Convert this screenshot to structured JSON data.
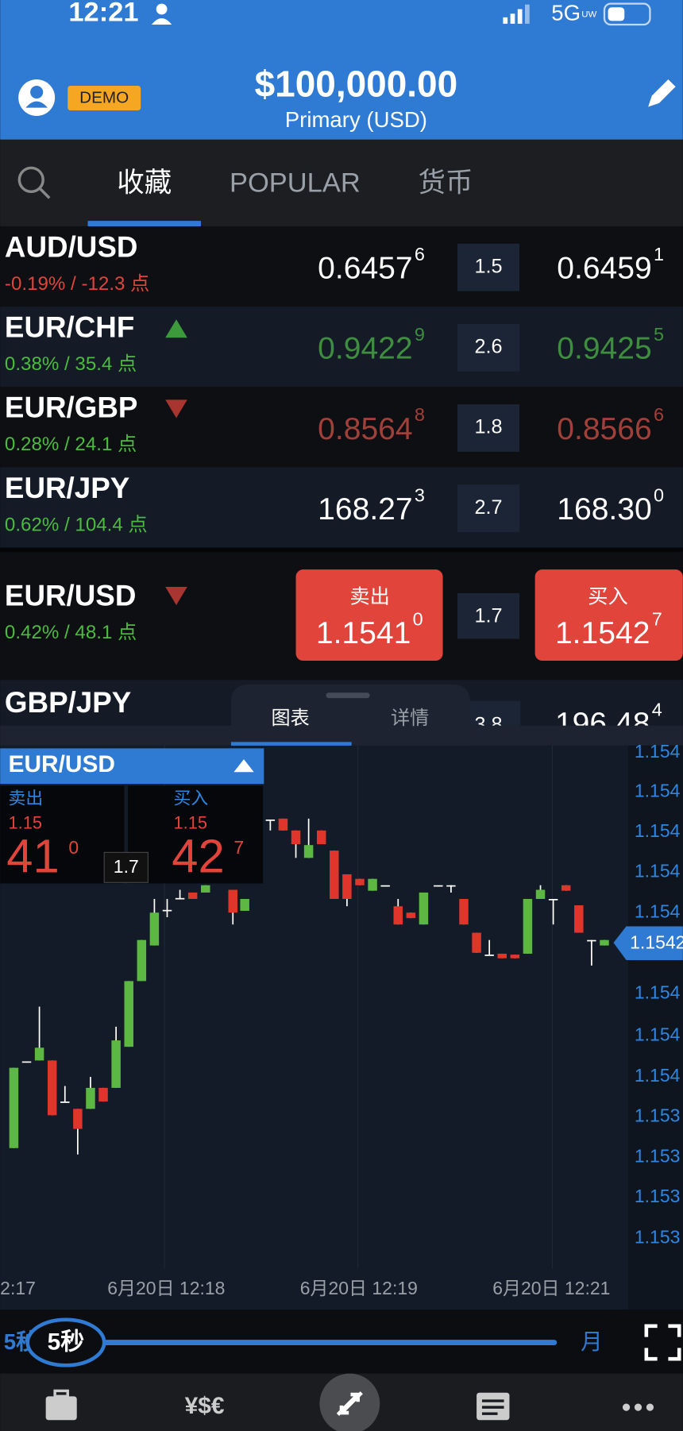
{
  "status_bar": {
    "time": "12:21",
    "network": "5G",
    "network_suffix": "UW"
  },
  "header": {
    "badge": "DEMO",
    "balance": "$100,000.00",
    "account": "Primary (USD)"
  },
  "tabs": [
    "收藏",
    "POPULAR",
    "货币"
  ],
  "quotes": [
    {
      "symbol": "AUD/USD",
      "change": "-0.19% / -12.3 点",
      "bid": "0.6457",
      "bid_pip": "6",
      "spread": "1.5",
      "ask": "0.6459",
      "ask_pip": "1"
    },
    {
      "symbol": "EUR/CHF",
      "direction": "up",
      "change": "0.38% / 35.4 点",
      "bid": "0.9422",
      "bid_pip": "9",
      "spread": "2.6",
      "ask": "0.9425",
      "ask_pip": "5"
    },
    {
      "symbol": "EUR/GBP",
      "direction": "down",
      "change": "0.28% / 24.1 点",
      "bid": "0.8564",
      "bid_pip": "8",
      "spread": "1.8",
      "ask": "0.8566",
      "ask_pip": "6"
    },
    {
      "symbol": "EUR/JPY",
      "change": "0.62% / 104.4 点",
      "bid": "168.27",
      "bid_pip": "3",
      "spread": "2.7",
      "ask": "168.30",
      "ask_pip": "0"
    }
  ],
  "selected_quote": {
    "symbol": "EUR/USD",
    "direction": "down",
    "change": "0.42% / 48.1 点",
    "sell_label": "卖出",
    "bid": "1.1541",
    "bid_pip": "0",
    "spread": "1.7",
    "buy_label": "买入",
    "ask": "1.1542",
    "ask_pip": "7"
  },
  "partial_quote": {
    "symbol": "GBP/JPY",
    "spread": "3.8",
    "ask": "196.48",
    "ask_pip": "4"
  },
  "panel_tabs": [
    "图表",
    "详情"
  ],
  "chart": {
    "symbol": "EUR/USD",
    "sell_label": "卖出",
    "sell_prefix": "1.15",
    "sell_big": "41",
    "sell_pip": "0",
    "buy_label": "买入",
    "buy_prefix": "1.15",
    "buy_big": "42",
    "buy_pip": "7",
    "spread": "1.7",
    "price_tag": "1.1542",
    "y_labels": [
      "1.154",
      "1.154",
      "1.154",
      "1.154",
      "1.154",
      "1.154",
      "1.154",
      "1.154",
      "1.153",
      "1.153",
      "1.153",
      "1.153"
    ],
    "x_labels": [
      "2:17",
      "6月20日 12:18",
      "6月20日 12:19",
      "6月20日 12:21"
    ]
  },
  "timeframe": {
    "start": "5秒",
    "current": "5秒",
    "end": "月"
  }
}
